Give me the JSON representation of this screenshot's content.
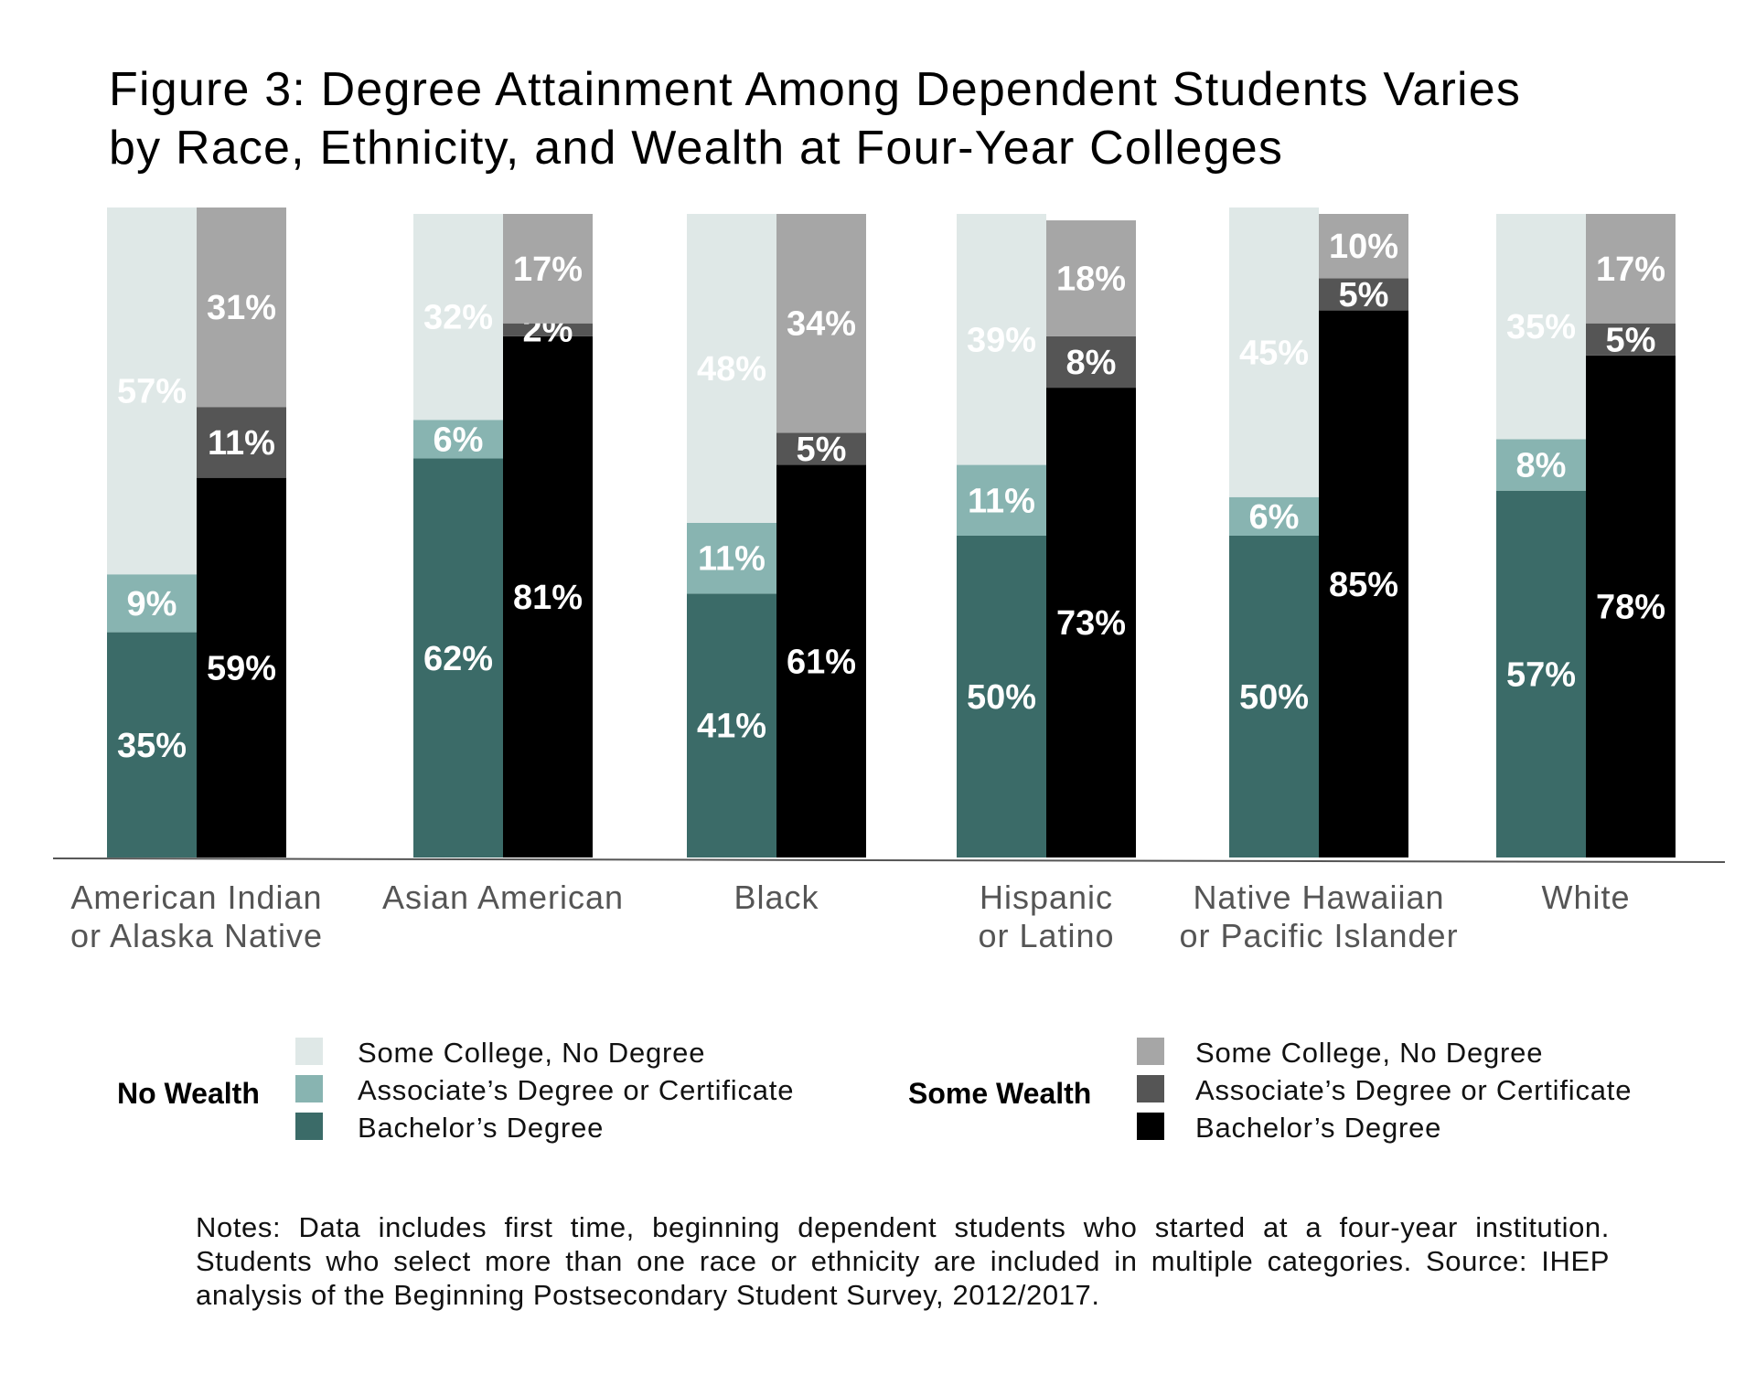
{
  "chart_data": {
    "type": "bar",
    "stacked": true,
    "title": "Figure 3: Degree Attainment Among Dependent Students Varies by Race, Ethnicity, and Wealth at Four-Year Colleges",
    "title_lines": [
      "Figure 3: Degree Attainment Among Dependent Students Varies",
      "by Race, Ethnicity, and Wealth at Four-Year Colleges"
    ],
    "xlabel": "",
    "ylabel": "",
    "ylim": [
      0,
      100
    ],
    "grid": false,
    "categories": [
      [
        "American Indian",
        "or Alaska Native"
      ],
      [
        "Asian American"
      ],
      [
        "Black"
      ],
      [
        "Hispanic",
        "or Latino"
      ],
      [
        "Native Hawaiian",
        "or Pacific Islander"
      ],
      [
        "White"
      ]
    ],
    "groups": [
      {
        "name": "No Wealth",
        "series": [
          {
            "name": "Bachelor’s Degree",
            "color": "#3b6b68",
            "values": [
              35,
              62,
              41,
              50,
              50,
              57
            ]
          },
          {
            "name": "Associate’s Degree or Certificate",
            "color": "#88b4b1",
            "values": [
              9,
              6,
              11,
              11,
              6,
              8
            ]
          },
          {
            "name": "Some College, No Degree",
            "color": "#dfe8e7",
            "values": [
              57,
              32,
              48,
              39,
              45,
              35
            ]
          }
        ]
      },
      {
        "name": "Some Wealth",
        "series": [
          {
            "name": "Bachelor’s Degree",
            "color": "#000000",
            "values": [
              59,
              81,
              61,
              73,
              85,
              78
            ]
          },
          {
            "name": "Associate’s Degree or Certificate",
            "color": "#555555",
            "values": [
              11,
              2,
              5,
              8,
              5,
              5
            ]
          },
          {
            "name": "Some College, No Degree",
            "color": "#a6a6a6",
            "values": [
              31,
              17,
              34,
              18,
              10,
              17
            ]
          }
        ]
      }
    ],
    "legend": {
      "placement": "bottom",
      "order": [
        "Some College, No Degree",
        "Associate’s Degree or Certificate",
        "Bachelor’s Degree"
      ]
    },
    "label_suffix": "%"
  },
  "notes": "Notes: Data includes first time, beginning dependent students who started at a four-year institution. Students who select more than one race or ethnicity are included in multiple categories. Source: IHEP analysis of the Beginning Postsecondary Student Survey, 2012/2017."
}
